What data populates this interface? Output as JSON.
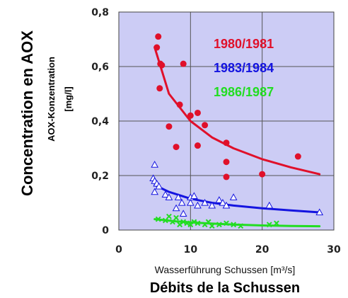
{
  "chart_data": {
    "type": "scatter",
    "outer_ylabel": "Concentration en AOX",
    "ylabel": "AOX-Konzentration",
    "ylabel_unit": "[mg/l]",
    "xlabel": "Wasserführung Schussen [m³/s]",
    "xlabel_fr": "Débits de la Schussen",
    "xlim": [
      0,
      30
    ],
    "ylim": [
      0,
      0.8
    ],
    "xticks": [
      "0",
      "10",
      "20",
      "30"
    ],
    "yticks": [
      "0",
      "0,2",
      "0,4",
      "0,6",
      "0,8"
    ],
    "plot_background": "#ccccf5",
    "grid": true,
    "legend_position": "top-right",
    "series": [
      {
        "name": "1980/1981",
        "color": "#e0102a",
        "marker": "circle",
        "points": [
          [
            5.5,
            0.71
          ],
          [
            5.3,
            0.67
          ],
          [
            5.8,
            0.61
          ],
          [
            6.0,
            0.605
          ],
          [
            5.7,
            0.52
          ],
          [
            9.0,
            0.61
          ],
          [
            7.0,
            0.38
          ],
          [
            8.0,
            0.305
          ],
          [
            8.5,
            0.46
          ],
          [
            10.0,
            0.42
          ],
          [
            11.0,
            0.43
          ],
          [
            11.0,
            0.31
          ],
          [
            12.0,
            0.385
          ],
          [
            15.0,
            0.32
          ],
          [
            15.0,
            0.25
          ],
          [
            15.0,
            0.195
          ],
          [
            20.0,
            0.205
          ],
          [
            25.0,
            0.27
          ]
        ],
        "trend": [
          [
            5,
            0.67
          ],
          [
            7,
            0.5
          ],
          [
            10,
            0.4
          ],
          [
            13,
            0.34
          ],
          [
            16,
            0.3
          ],
          [
            20,
            0.26
          ],
          [
            24,
            0.23
          ],
          [
            28,
            0.205
          ]
        ]
      },
      {
        "name": "1983/1984",
        "color": "#1414e0",
        "marker": "triangle-open",
        "points": [
          [
            5.0,
            0.24
          ],
          [
            4.8,
            0.19
          ],
          [
            5.0,
            0.18
          ],
          [
            5.3,
            0.17
          ],
          [
            5.6,
            0.16
          ],
          [
            5.0,
            0.14
          ],
          [
            6.5,
            0.13
          ],
          [
            7.0,
            0.12
          ],
          [
            8.3,
            0.12
          ],
          [
            8.8,
            0.1
          ],
          [
            10.0,
            0.12
          ],
          [
            10.5,
            0.125
          ],
          [
            10.0,
            0.1
          ],
          [
            11.0,
            0.09
          ],
          [
            12.0,
            0.1
          ],
          [
            13.0,
            0.09
          ],
          [
            14.0,
            0.11
          ],
          [
            14.5,
            0.1
          ],
          [
            15.0,
            0.09
          ],
          [
            16.0,
            0.12
          ],
          [
            9.0,
            0.06
          ],
          [
            8.0,
            0.08
          ],
          [
            21.0,
            0.09
          ],
          [
            28.0,
            0.065
          ]
        ],
        "trend": [
          [
            5,
            0.165
          ],
          [
            7,
            0.14
          ],
          [
            10,
            0.115
          ],
          [
            13,
            0.1
          ],
          [
            16,
            0.09
          ],
          [
            20,
            0.08
          ],
          [
            24,
            0.072
          ],
          [
            28,
            0.065
          ]
        ]
      },
      {
        "name": "1986/1987",
        "color": "#22dd22",
        "marker": "cross",
        "points": [
          [
            5.5,
            0.04
          ],
          [
            6.5,
            0.035
          ],
          [
            7.0,
            0.05
          ],
          [
            7.5,
            0.03
          ],
          [
            8.0,
            0.045
          ],
          [
            8.5,
            0.02
          ],
          [
            9.0,
            0.03
          ],
          [
            9.5,
            0.025
          ],
          [
            10.0,
            0.02
          ],
          [
            10.5,
            0.03
          ],
          [
            11.0,
            0.025
          ],
          [
            12.0,
            0.02
          ],
          [
            12.5,
            0.03
          ],
          [
            13.0,
            0.015
          ],
          [
            14.0,
            0.02
          ],
          [
            15.0,
            0.025
          ],
          [
            16.0,
            0.02
          ],
          [
            17.0,
            0.015
          ],
          [
            21.0,
            0.02
          ],
          [
            22.0,
            0.025
          ]
        ],
        "trend": [
          [
            5,
            0.04
          ],
          [
            8,
            0.032
          ],
          [
            12,
            0.025
          ],
          [
            16,
            0.02
          ],
          [
            20,
            0.017
          ],
          [
            24,
            0.015
          ],
          [
            28,
            0.014
          ]
        ]
      }
    ]
  }
}
